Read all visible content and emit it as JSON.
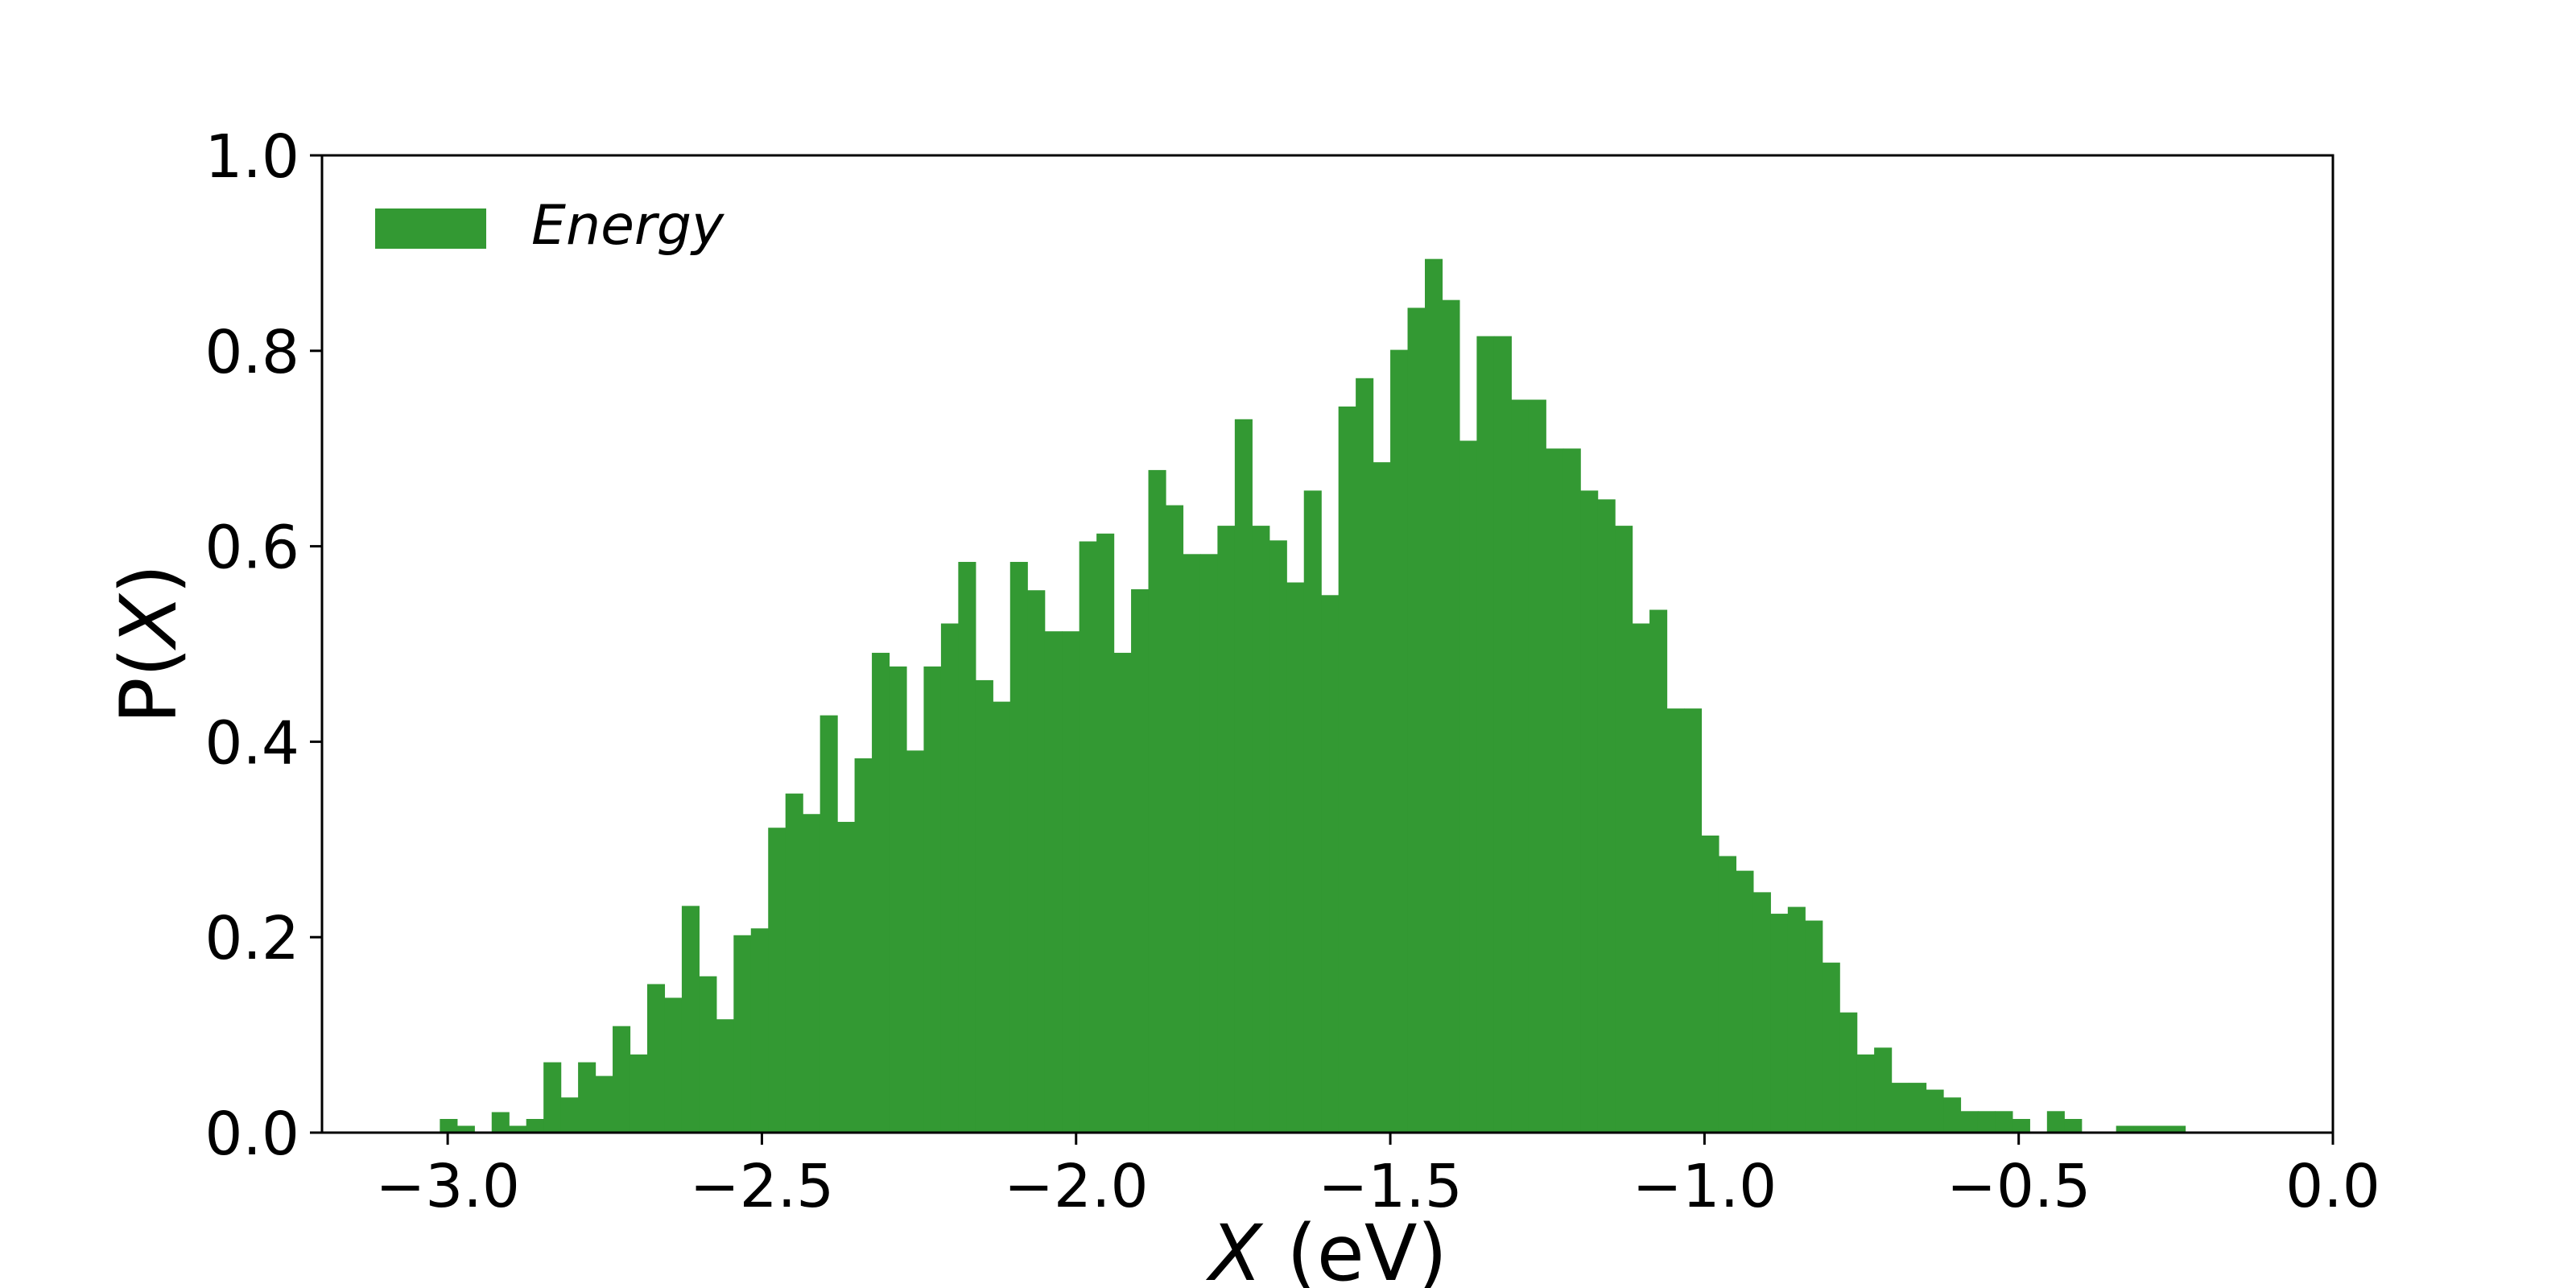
{
  "chart_data": {
    "type": "bar",
    "subtype": "histogram",
    "title": "",
    "xlabel": {
      "var": "X",
      "unit": " (eV)"
    },
    "ylabel": {
      "prefix": "P(",
      "var": "X",
      "suffix": ")"
    },
    "xlim": [
      -3.2,
      0.0
    ],
    "ylim": [
      0.0,
      1.0
    ],
    "xticks": [
      -3.0,
      -2.5,
      -2.0,
      -1.5,
      -1.0,
      -0.5,
      0.0
    ],
    "xtick_labels": [
      "−3.0",
      "−2.5",
      "−2.0",
      "−1.5",
      "−1.0",
      "−0.5",
      "0.0"
    ],
    "yticks": [
      0.0,
      0.2,
      0.4,
      0.6,
      0.8,
      1.0
    ],
    "ytick_labels": [
      "0.0",
      "0.2",
      "0.4",
      "0.6",
      "0.8",
      "1.0"
    ],
    "grid": false,
    "legend": {
      "position": "top-left",
      "entries": [
        "Energy"
      ]
    },
    "colors": {
      "bar": "#339933",
      "axes": "#000000",
      "background": "#ffffff"
    },
    "bin_width": 0.0275,
    "bins_start": -3.0125,
    "series": [
      {
        "name": "Energy",
        "values": [
          0.014,
          0.007,
          0,
          0.021,
          0.007,
          0.014,
          0.072,
          0.036,
          0.072,
          0.058,
          0.109,
          0.08,
          0.152,
          0.138,
          0.232,
          0.16,
          0.116,
          0.202,
          0.209,
          0.312,
          0.347,
          0.326,
          0.427,
          0.318,
          0.383,
          0.491,
          0.477,
          0.391,
          0.477,
          0.521,
          0.584,
          0.463,
          0.441,
          0.584,
          0.555,
          0.513,
          0.513,
          0.605,
          0.613,
          0.491,
          0.556,
          0.678,
          0.642,
          0.592,
          0.592,
          0.621,
          0.73,
          0.621,
          0.606,
          0.563,
          0.657,
          0.55,
          0.743,
          0.772,
          0.686,
          0.801,
          0.844,
          0.894,
          0.852,
          0.708,
          0.815,
          0.815,
          0.75,
          0.75,
          0.7,
          0.7,
          0.657,
          0.648,
          0.621,
          0.521,
          0.535,
          0.434,
          0.434,
          0.304,
          0.283,
          0.268,
          0.246,
          0.224,
          0.231,
          0.217,
          0.174,
          0.123,
          0.08,
          0.087,
          0.051,
          0.051,
          0.044,
          0.036,
          0.022,
          0.022,
          0.022,
          0.014,
          0,
          0.022,
          0.014,
          0,
          0,
          0.007,
          0.007,
          0.007,
          0.007
        ]
      }
    ]
  }
}
